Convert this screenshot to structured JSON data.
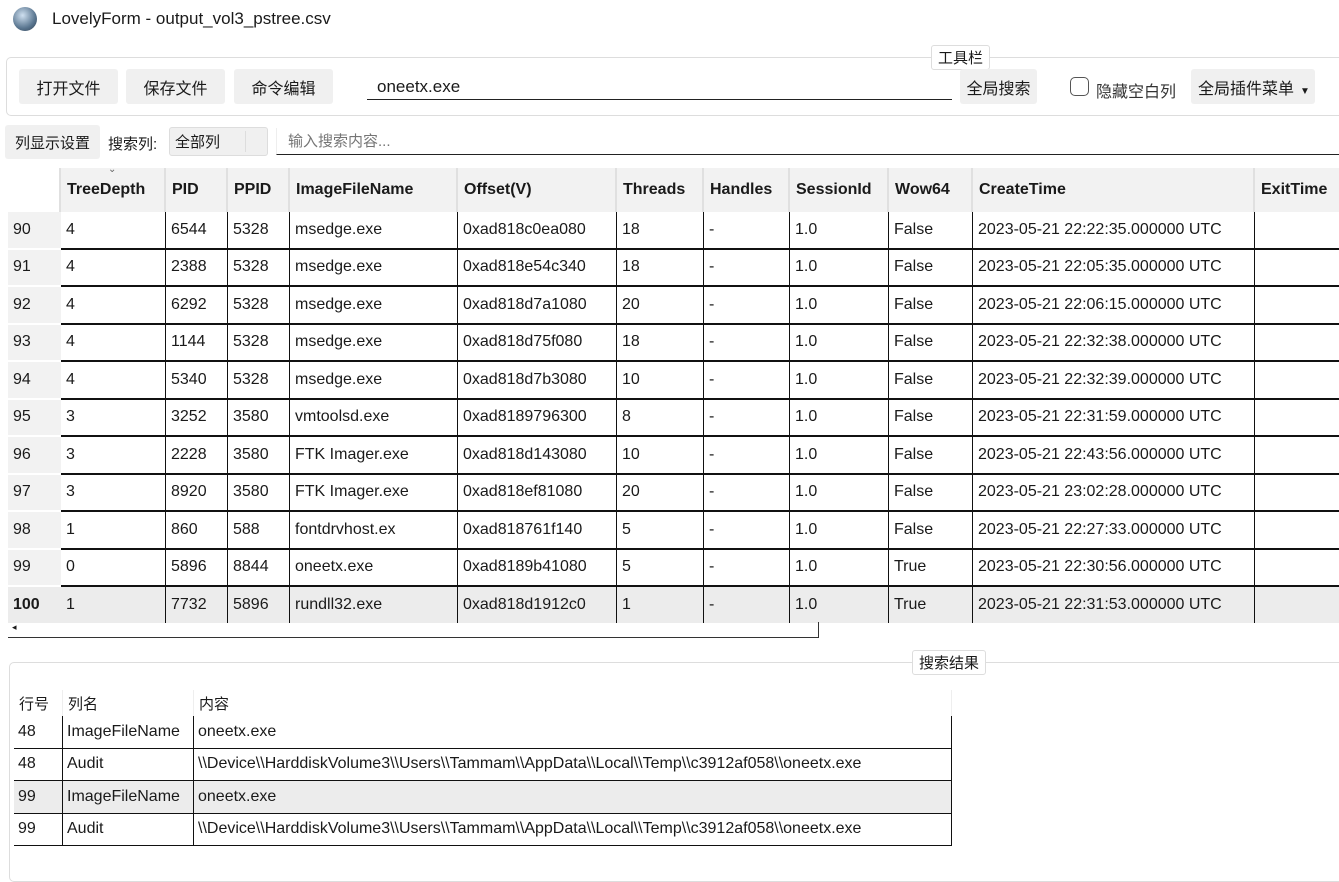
{
  "window": {
    "title": "LovelyForm - output_vol3_pstree.csv",
    "icon": "app-avatar-icon"
  },
  "toolbar": {
    "legend": "工具栏",
    "open_file": "打开文件",
    "save_file": "保存文件",
    "command_edit": "命令编辑",
    "global_search_value": "oneetx.exe",
    "global_search": "全局搜索",
    "hide_empty_label": "隐藏空白列",
    "hide_empty_checked": false,
    "plugin_menu": "全局插件菜单"
  },
  "filter": {
    "column_settings": "列显示设置",
    "search_col_label": "搜索列:",
    "search_col_value": "全部列",
    "search_placeholder": "输入搜索内容..."
  },
  "table": {
    "columns": [
      "TreeDepth",
      "PID",
      "PPID",
      "ImageFileName",
      "Offset(V)",
      "Threads",
      "Handles",
      "SessionId",
      "Wow64",
      "CreateTime",
      "ExitTime"
    ],
    "rows": [
      {
        "n": "90",
        "c": [
          "4",
          "6544",
          "5328",
          "msedge.exe",
          "0xad818c0ea080",
          "18",
          "-",
          "1.0",
          "False",
          "2023-05-21 22:22:35.000000 UTC",
          ""
        ]
      },
      {
        "n": "91",
        "c": [
          "4",
          "2388",
          "5328",
          "msedge.exe",
          "0xad818e54c340",
          "18",
          "-",
          "1.0",
          "False",
          "2023-05-21 22:05:35.000000 UTC",
          ""
        ]
      },
      {
        "n": "92",
        "c": [
          "4",
          "6292",
          "5328",
          "msedge.exe",
          "0xad818d7a1080",
          "20",
          "-",
          "1.0",
          "False",
          "2023-05-21 22:06:15.000000 UTC",
          ""
        ]
      },
      {
        "n": "93",
        "c": [
          "4",
          "1144",
          "5328",
          "msedge.exe",
          "0xad818d75f080",
          "18",
          "-",
          "1.0",
          "False",
          "2023-05-21 22:32:38.000000 UTC",
          ""
        ]
      },
      {
        "n": "94",
        "c": [
          "4",
          "5340",
          "5328",
          "msedge.exe",
          "0xad818d7b3080",
          "10",
          "-",
          "1.0",
          "False",
          "2023-05-21 22:32:39.000000 UTC",
          ""
        ]
      },
      {
        "n": "95",
        "c": [
          "3",
          "3252",
          "3580",
          "vmtoolsd.exe",
          "0xad8189796300",
          "8",
          "-",
          "1.0",
          "False",
          "2023-05-21 22:31:59.000000 UTC",
          ""
        ]
      },
      {
        "n": "96",
        "c": [
          "3",
          "2228",
          "3580",
          "FTK Imager.exe",
          "0xad818d143080",
          "10",
          "-",
          "1.0",
          "False",
          "2023-05-21 22:43:56.000000 UTC",
          ""
        ]
      },
      {
        "n": "97",
        "c": [
          "3",
          "8920",
          "3580",
          "FTK Imager.exe",
          "0xad818ef81080",
          "20",
          "-",
          "1.0",
          "False",
          "2023-05-21 23:02:28.000000 UTC",
          ""
        ]
      },
      {
        "n": "98",
        "c": [
          "1",
          "860",
          "588",
          "fontdrvhost.ex",
          "0xad818761f140",
          "5",
          "-",
          "1.0",
          "False",
          "2023-05-21 22:27:33.000000 UTC",
          ""
        ]
      },
      {
        "n": "99",
        "c": [
          "0",
          "5896",
          "8844",
          "oneetx.exe",
          "0xad8189b41080",
          "5",
          "-",
          "1.0",
          "True",
          "2023-05-21 22:30:56.000000 UTC",
          ""
        ]
      },
      {
        "n": "100",
        "c": [
          "1",
          "7732",
          "5896",
          "rundll32.exe",
          "0xad818d1912c0",
          "1",
          "-",
          "1.0",
          "True",
          "2023-05-21 22:31:53.000000 UTC",
          ""
        ],
        "selected": true
      }
    ]
  },
  "results": {
    "legend": "搜索结果",
    "columns": [
      "行号",
      "列名",
      "内容"
    ],
    "rows": [
      {
        "c": [
          "48",
          "ImageFileName",
          "oneetx.exe"
        ]
      },
      {
        "c": [
          "48",
          "Audit",
          "\\\\Device\\\\HarddiskVolume3\\\\Users\\\\Tammam\\\\AppData\\\\Local\\\\Temp\\\\c3912af058\\\\oneetx.exe"
        ]
      },
      {
        "c": [
          "99",
          "ImageFileName",
          "oneetx.exe"
        ],
        "selected": true
      },
      {
        "c": [
          "99",
          "Audit",
          "\\\\Device\\\\HarddiskVolume3\\\\Users\\\\Tammam\\\\AppData\\\\Local\\\\Temp\\\\c3912af058\\\\oneetx.exe"
        ]
      }
    ]
  }
}
